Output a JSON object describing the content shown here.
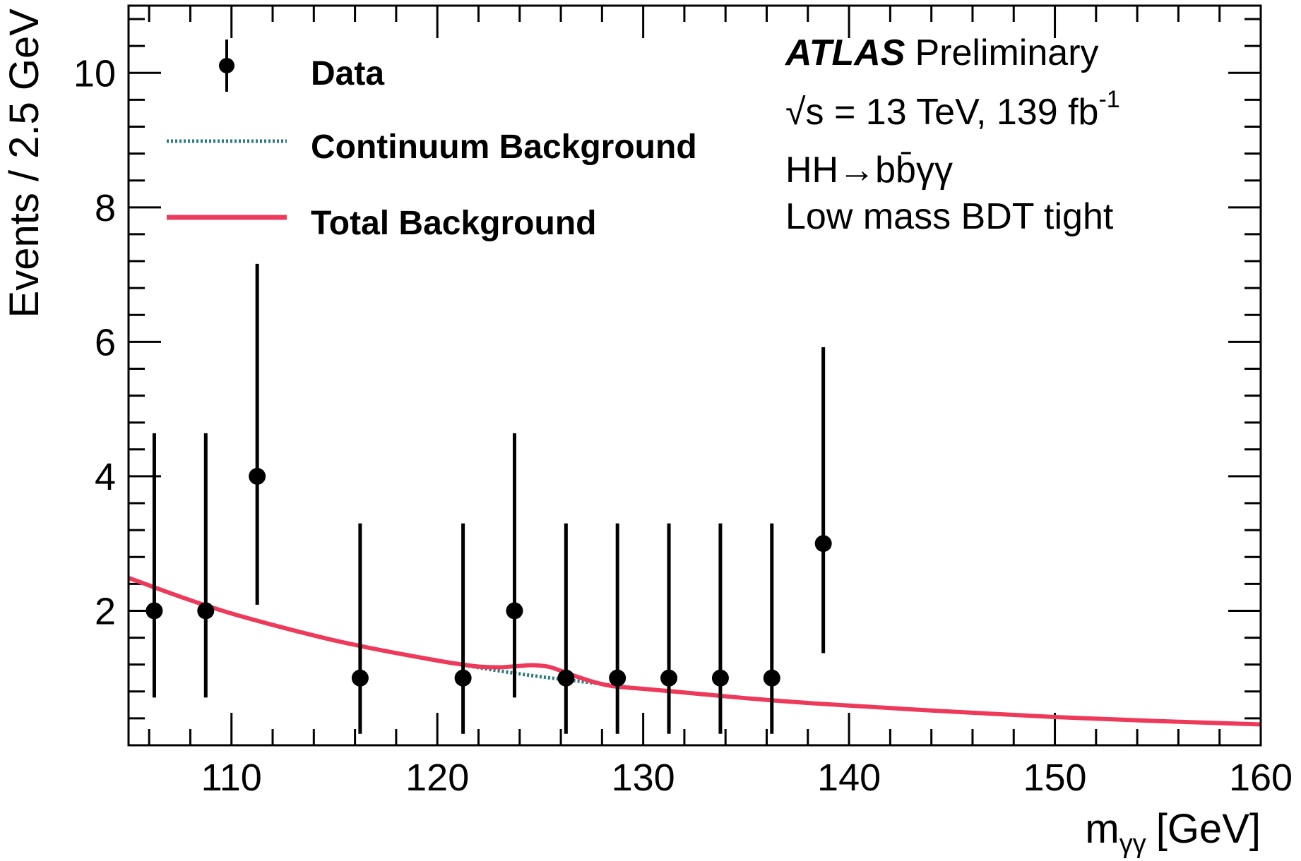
{
  "chart_data": {
    "type": "scatter",
    "xlabel": "m",
    "xlabel_sub": "γγ",
    "xlabel_unit": "[GeV]",
    "ylabel": "Events /  2.5 GeV",
    "xlim": [
      105,
      160
    ],
    "ylim": [
      0,
      11
    ],
    "x_ticks": [
      110,
      120,
      130,
      140,
      150,
      160
    ],
    "y_ticks": [
      2,
      4,
      6,
      8,
      10
    ],
    "legend_position": "top-left",
    "legend": {
      "data": "Data",
      "continuum": "Continuum Background",
      "total": "Total Background"
    },
    "labels": {
      "experiment": "ATLAS",
      "status": "Preliminary",
      "energy": "√s = 13 TeV, 139 fb",
      "energy_sup": "-1",
      "process": "HH→bb̄γγ",
      "category": "Low mass BDT tight"
    },
    "colors": {
      "data": "#000000",
      "continuum": "#2a7a80",
      "total": "#ee3a5a"
    },
    "series": [
      {
        "name": "Data",
        "x": [
          106.25,
          108.75,
          111.25,
          116.25,
          121.25,
          123.75,
          126.25,
          128.75,
          131.25,
          133.75,
          136.25,
          138.75
        ],
        "y": [
          2,
          2,
          4,
          1,
          1,
          2,
          1,
          1,
          1,
          1,
          1,
          3
        ],
        "err_low": [
          1.29,
          1.29,
          1.91,
          0.83,
          0.83,
          1.29,
          0.83,
          0.83,
          0.83,
          0.83,
          0.83,
          1.63
        ],
        "err_high": [
          2.64,
          2.64,
          3.16,
          2.3,
          2.3,
          2.64,
          2.3,
          2.3,
          2.3,
          2.3,
          2.3,
          2.92
        ]
      },
      {
        "name": "Continuum Background",
        "x": [
          105,
          107.5,
          110,
          112.5,
          115,
          117.5,
          120,
          122.5,
          125,
          127.5,
          130,
          132.5,
          135,
          137.5,
          140,
          145,
          150,
          155,
          160
        ],
        "y": [
          2.49,
          2.21,
          1.96,
          1.75,
          1.56,
          1.4,
          1.26,
          1.13,
          1.02,
          0.93,
          0.84,
          0.77,
          0.7,
          0.64,
          0.59,
          0.5,
          0.42,
          0.36,
          0.31
        ]
      },
      {
        "name": "Total Background",
        "x": [
          105,
          107.5,
          110,
          112.5,
          115,
          117.5,
          120,
          121,
          122,
          123,
          124,
          124.7,
          125.5,
          126.5,
          127.5,
          128.5,
          130,
          132.5,
          135,
          137.5,
          140,
          145,
          150,
          155,
          160
        ],
        "y": [
          2.49,
          2.21,
          1.96,
          1.75,
          1.56,
          1.4,
          1.26,
          1.21,
          1.17,
          1.16,
          1.18,
          1.19,
          1.16,
          1.05,
          0.95,
          0.88,
          0.84,
          0.77,
          0.7,
          0.64,
          0.59,
          0.5,
          0.42,
          0.36,
          0.31
        ]
      }
    ]
  }
}
